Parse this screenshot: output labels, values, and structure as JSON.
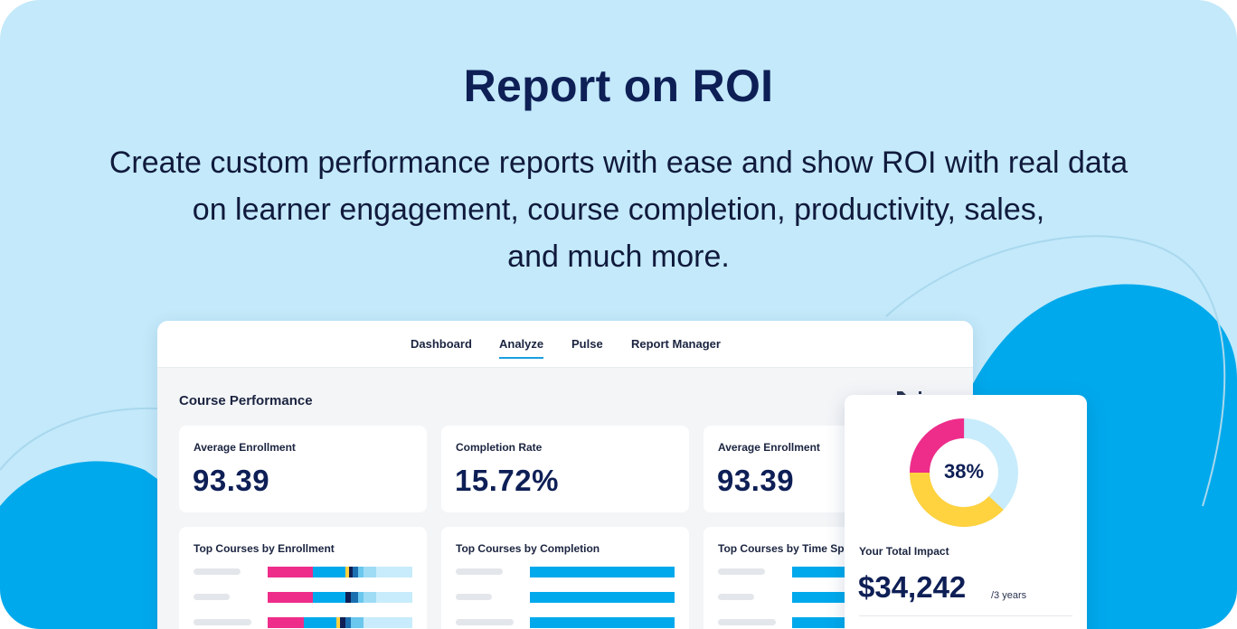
{
  "hero": {
    "title": "Report on ROI",
    "subtitle_lines": [
      "Create custom performance reports with ease and show ROI with real data",
      "on learner engagement, course completion, productivity, sales,",
      "and much more."
    ]
  },
  "nav": {
    "tabs": [
      {
        "label": "Dashboard",
        "active": false
      },
      {
        "label": "Analyze",
        "active": true
      },
      {
        "label": "Pulse",
        "active": false
      },
      {
        "label": "Report Manager",
        "active": false
      }
    ]
  },
  "main": {
    "section_title": "Course Performance",
    "kpis": [
      {
        "label": "Average Enrollment",
        "value": "93.39"
      },
      {
        "label": "Completion Rate",
        "value": "15.72%"
      },
      {
        "label": "Average Enrollment",
        "value": "93.39"
      }
    ],
    "lists": [
      {
        "title": "Top Courses by Enrollment"
      },
      {
        "title": "Top Courses by Completion"
      },
      {
        "title": "Top Courses by Time Spent"
      }
    ]
  },
  "impact": {
    "percent_label": "38%",
    "percent": 38,
    "label": "Your Total Impact",
    "value": "$34,242",
    "unit": "/3 years"
  },
  "colors": {
    "background": "#c3e9fa",
    "blob": "#00a9ec",
    "navy": "#0e1f56",
    "accent_blue": "#1a9fe0",
    "pink": "#ee2d8a",
    "yellow": "#ffd23f",
    "light_blue": "#c8ecfb"
  }
}
